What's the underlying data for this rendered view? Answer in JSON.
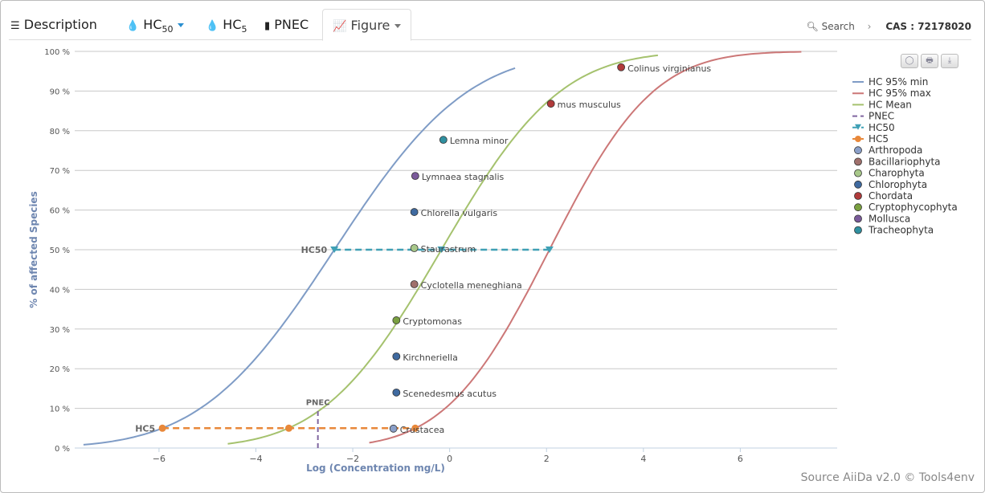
{
  "tabs": [
    {
      "label": "Description",
      "icon": "list-icon"
    },
    {
      "label": "HC",
      "sub": "50",
      "icon": "drop-icon",
      "caret": true
    },
    {
      "label": "HC",
      "sub": "5",
      "icon": "drop-icon"
    },
    {
      "label": "PNEC",
      "icon": "book-icon"
    },
    {
      "label": "Figure",
      "icon": "chart-icon",
      "caret": true,
      "active": true
    }
  ],
  "breadcrumb": {
    "search": "Search",
    "cas": "CAS : 72178020"
  },
  "source": "Source AiiDa v2.0 © Tools4env",
  "chart_buttons": [
    "circle-button",
    "print-button",
    "download-button"
  ],
  "chart_data": {
    "type": "line",
    "xlabel": "Log (Concentration mg/L)",
    "ylabel": "% of affected Species",
    "xlim": [
      -7.74,
      8.0
    ],
    "ylim": [
      0,
      100
    ],
    "xticks": [
      -6,
      -4,
      -2,
      0,
      2,
      4,
      6
    ],
    "xtick_labels": [
      "−6",
      "−4",
      "−2",
      "0",
      "2",
      "4",
      "6"
    ],
    "yticks": [
      0,
      10,
      20,
      30,
      40,
      50,
      60,
      70,
      80,
      90,
      100
    ],
    "ytick_labels": [
      "0 %",
      "10 %",
      "20 %",
      "30 %",
      "40 %",
      "50 %",
      "60 %",
      "70 %",
      "80 %",
      "90 %",
      "100 %"
    ],
    "grid": true,
    "legend_position": "right",
    "curves": [
      {
        "name": "HC 95% min",
        "color": "#7f9cc6",
        "mu": -2.38,
        "sigma": 2.16,
        "range": [
          -7.56,
          1.35
        ]
      },
      {
        "name": "HC 95% max",
        "color": "#cc7777",
        "mu": 2.06,
        "sigma": 1.68,
        "range": [
          -1.66,
          7.26
        ]
      },
      {
        "name": "HC Mean",
        "color": "#a5c26e",
        "mu": -0.17,
        "sigma": 1.92,
        "range": [
          -4.58,
          4.3
        ]
      }
    ],
    "pnec": {
      "name": "PNEC",
      "label": "PNEC",
      "color": "#8066a0",
      "x": -2.72,
      "y": [
        0,
        10
      ]
    },
    "hc50": {
      "name": "HC50",
      "label": "HC50",
      "color": "#3fa0b5",
      "x": [
        -2.38,
        -0.17,
        2.06
      ],
      "y": 50
    },
    "hc5": {
      "name": "HC5",
      "label": "HC5",
      "color": "#e8883a",
      "x": [
        -5.93,
        -3.32,
        -0.71
      ],
      "y": 5
    },
    "categories": [
      {
        "name": "Arthropoda",
        "color": "#8a9fc8"
      },
      {
        "name": "Bacillariophyta",
        "color": "#a0706c"
      },
      {
        "name": "Charophyta",
        "color": "#a8c88a"
      },
      {
        "name": "Chlorophyta",
        "color": "#3f6aa0"
      },
      {
        "name": "Chordata",
        "color": "#b03a3a"
      },
      {
        "name": "Cryptophycophyta",
        "color": "#7aa040"
      },
      {
        "name": "Mollusca",
        "color": "#7a5a9a"
      },
      {
        "name": "Tracheophyta",
        "color": "#2f90a0"
      }
    ],
    "species": [
      {
        "name": "Colinus virginianus",
        "category": "Chordata",
        "x": 3.54,
        "y": 96.0
      },
      {
        "name": "mus musculus",
        "category": "Chordata",
        "x": 2.09,
        "y": 86.8
      },
      {
        "name": "Lemna minor",
        "category": "Tracheophyta",
        "x": -0.13,
        "y": 77.7
      },
      {
        "name": "Lymnaea stagnalis",
        "category": "Mollusca",
        "x": -0.71,
        "y": 68.6
      },
      {
        "name": "Chlorella vulgaris",
        "category": "Chlorophyta",
        "x": -0.73,
        "y": 59.5
      },
      {
        "name": "Staurastrum",
        "category": "Charophyta",
        "x": -0.73,
        "y": 50.4
      },
      {
        "name": "Cyclotella meneghiana",
        "category": "Bacillariophyta",
        "x": -0.73,
        "y": 41.3
      },
      {
        "name": "Cryptomonas",
        "category": "Cryptophycophyta",
        "x": -1.1,
        "y": 32.2
      },
      {
        "name": "Kirchneriella",
        "category": "Chlorophyta",
        "x": -1.1,
        "y": 23.1
      },
      {
        "name": "Scenedesmus acutus",
        "category": "Chlorophyta",
        "x": -1.1,
        "y": 14.0
      },
      {
        "name": "Crustacea",
        "category": "Arthropoda",
        "x": -1.16,
        "y": 4.9
      }
    ]
  }
}
